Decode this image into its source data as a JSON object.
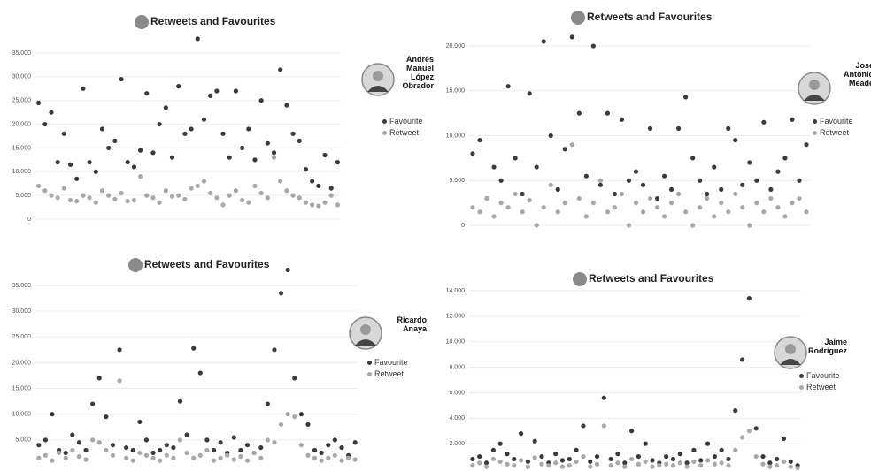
{
  "chart_data": [
    {
      "type": "scatter",
      "title": "Retweets and Favourites",
      "person": "Andrés Manuel López Obrador",
      "grid": true,
      "ylim": [
        0,
        38000
      ],
      "yticks": [
        0,
        {
          "value": 5000,
          "label": "5.000"
        },
        {
          "value": 10000,
          "label": "10.000"
        },
        {
          "value": 15000,
          "label": "15.000"
        },
        {
          "value": 20000,
          "label": "20.000"
        },
        {
          "value": 25000,
          "label": "25.000"
        },
        {
          "value": 30000,
          "label": "30.000"
        },
        {
          "value": 35000,
          "label": "35.000"
        }
      ],
      "series": [
        {
          "name": "Favourite",
          "color": "#3a3a3a",
          "values": [
            24500,
            20000,
            22500,
            12000,
            18000,
            11500,
            8500,
            27500,
            12000,
            10000,
            19000,
            15000,
            16500,
            29500,
            12000,
            11000,
            14500,
            26500,
            14000,
            20000,
            23500,
            13000,
            28000,
            18000,
            19000,
            38000,
            21000,
            26000,
            27000,
            18000,
            13000,
            27000,
            15000,
            19000,
            12500,
            25000,
            16000,
            14000,
            31500,
            24000,
            18000,
            16500,
            10500,
            8000,
            7000,
            13500,
            6500,
            12000
          ]
        },
        {
          "name": "Retweet",
          "color": "#a8a8a8",
          "values": [
            7000,
            6000,
            5000,
            4500,
            6500,
            4000,
            3800,
            5000,
            4500,
            3500,
            6000,
            5000,
            4200,
            5500,
            3800,
            4000,
            9000,
            5000,
            4500,
            3500,
            6000,
            4800,
            5000,
            4200,
            6500,
            7000,
            8000,
            5500,
            4500,
            3000,
            5000,
            6000,
            4000,
            3500,
            7000,
            5500,
            4500,
            13000,
            8000,
            6000,
            5000,
            4500,
            3500,
            3000,
            2800,
            3500,
            5000,
            3000
          ]
        }
      ]
    },
    {
      "type": "scatter",
      "title": "Retweets and Favourites",
      "person": "José Antonio Meade",
      "grid": true,
      "ylim": [
        0,
        21000
      ],
      "yticks": [
        0,
        {
          "value": 5000,
          "label": "5.000"
        },
        {
          "value": 10000,
          "label": "10.000"
        },
        {
          "value": 15000,
          "label": "15.000"
        },
        {
          "value": 20000,
          "label": "20.000"
        }
      ],
      "series": [
        {
          "name": "Favourite",
          "color": "#3a3a3a",
          "values": [
            8000,
            9500,
            3000,
            6500,
            5000,
            15500,
            7500,
            3500,
            14700,
            6500,
            20500,
            10000,
            4000,
            8500,
            21000,
            12500,
            5500,
            20000,
            4500,
            12500,
            3500,
            11800,
            5000,
            6000,
            4500,
            10800,
            3000,
            5500,
            4000,
            10800,
            14300,
            7500,
            5000,
            3500,
            6500,
            4000,
            10800,
            9500,
            4500,
            7000,
            5000,
            11500,
            4000,
            6000,
            7500,
            11800,
            5000,
            9000
          ]
        },
        {
          "name": "Retweet",
          "color": "#a8a8a8",
          "values": [
            2000,
            1500,
            3000,
            1000,
            2500,
            2000,
            3500,
            1500,
            2800,
            0,
            2000,
            4500,
            1500,
            2500,
            9000,
            3000,
            1000,
            2500,
            5000,
            1500,
            2000,
            3500,
            0,
            2500,
            1500,
            3000,
            2000,
            1000,
            2500,
            3500,
            1500,
            0,
            2000,
            3000,
            1000,
            2500,
            1500,
            3500,
            2000,
            0,
            2500,
            1500,
            3000,
            2000,
            1000,
            2500,
            3000,
            1500
          ]
        }
      ]
    },
    {
      "type": "scatter",
      "title": "Retweets and Favourites",
      "person": "Ricardo Anaya",
      "grid": true,
      "ylim": [
        0,
        38000
      ],
      "yticks": [
        {
          "value": 5000,
          "label": "5.000"
        },
        {
          "value": 10000,
          "label": "10.000"
        },
        {
          "value": 15000,
          "label": "15.000"
        },
        {
          "value": 20000,
          "label": "20.000"
        },
        {
          "value": 25000,
          "label": "25.000"
        },
        {
          "value": 30000,
          "label": "30.000"
        },
        {
          "value": 35000,
          "label": "35.000"
        }
      ],
      "series": [
        {
          "name": "Favourite",
          "color": "#3a3a3a",
          "values": [
            4000,
            5000,
            10000,
            3000,
            2500,
            6000,
            4500,
            3000,
            12000,
            17000,
            9500,
            4000,
            22500,
            3500,
            3000,
            8500,
            5000,
            2500,
            3000,
            4000,
            3500,
            12500,
            6000,
            22800,
            18000,
            5000,
            3000,
            4500,
            2500,
            5500,
            3000,
            4000,
            2500,
            3500,
            12000,
            22500,
            33500,
            38000,
            17000,
            10000,
            8000,
            3000,
            2500,
            4000,
            5000,
            3500,
            2000,
            4500
          ]
        },
        {
          "name": "Retweet",
          "color": "#a8a8a8",
          "values": [
            1500,
            2000,
            1000,
            2500,
            1500,
            3000,
            1800,
            1200,
            5000,
            4500,
            3000,
            2000,
            16500,
            1500,
            1000,
            2500,
            2000,
            1500,
            1000,
            2000,
            1500,
            5000,
            2500,
            1500,
            2000,
            3000,
            1000,
            1500,
            2000,
            1200,
            1800,
            1000,
            2500,
            1500,
            5000,
            4500,
            8000,
            10000,
            9500,
            4000,
            2000,
            1500,
            1000,
            1500,
            2000,
            1000,
            1500,
            1200
          ]
        }
      ]
    },
    {
      "type": "scatter",
      "title": "Retweets and Favourites",
      "person": "Jaime Rodríguez",
      "grid": true,
      "ylim": [
        0,
        14000
      ],
      "yticks": [
        {
          "value": 2000,
          "label": "2.000"
        },
        {
          "value": 4000,
          "label": "4.000"
        },
        {
          "value": 6000,
          "label": "6.000"
        },
        {
          "value": 8000,
          "label": "8.000"
        },
        {
          "value": 10000,
          "label": "10.000"
        },
        {
          "value": 12000,
          "label": "12.000"
        },
        {
          "value": 14000,
          "label": "14.000"
        }
      ],
      "series": [
        {
          "name": "Favourite",
          "color": "#3a3a3a",
          "values": [
            800,
            1000,
            500,
            1500,
            2000,
            1200,
            800,
            2800,
            600,
            2200,
            1000,
            500,
            1200,
            700,
            800,
            1500,
            3400,
            600,
            1000,
            5600,
            800,
            1200,
            500,
            3000,
            1000,
            2000,
            700,
            500,
            1000,
            800,
            1200,
            500,
            1500,
            700,
            2000,
            1000,
            1500,
            800,
            4600,
            8600,
            13400,
            3200,
            1000,
            500,
            800,
            2400,
            600,
            300
          ]
        },
        {
          "name": "Retweet",
          "color": "#a8a8a8",
          "values": [
            300,
            500,
            200,
            800,
            600,
            400,
            300,
            700,
            200,
            900,
            400,
            300,
            500,
            200,
            300,
            600,
            1000,
            200,
            400,
            3400,
            300,
            500,
            200,
            800,
            400,
            600,
            200,
            300,
            400,
            300,
            500,
            200,
            600,
            300,
            700,
            400,
            500,
            300,
            1500,
            2500,
            3000,
            1000,
            400,
            200,
            300,
            600,
            200,
            100
          ]
        }
      ]
    }
  ]
}
